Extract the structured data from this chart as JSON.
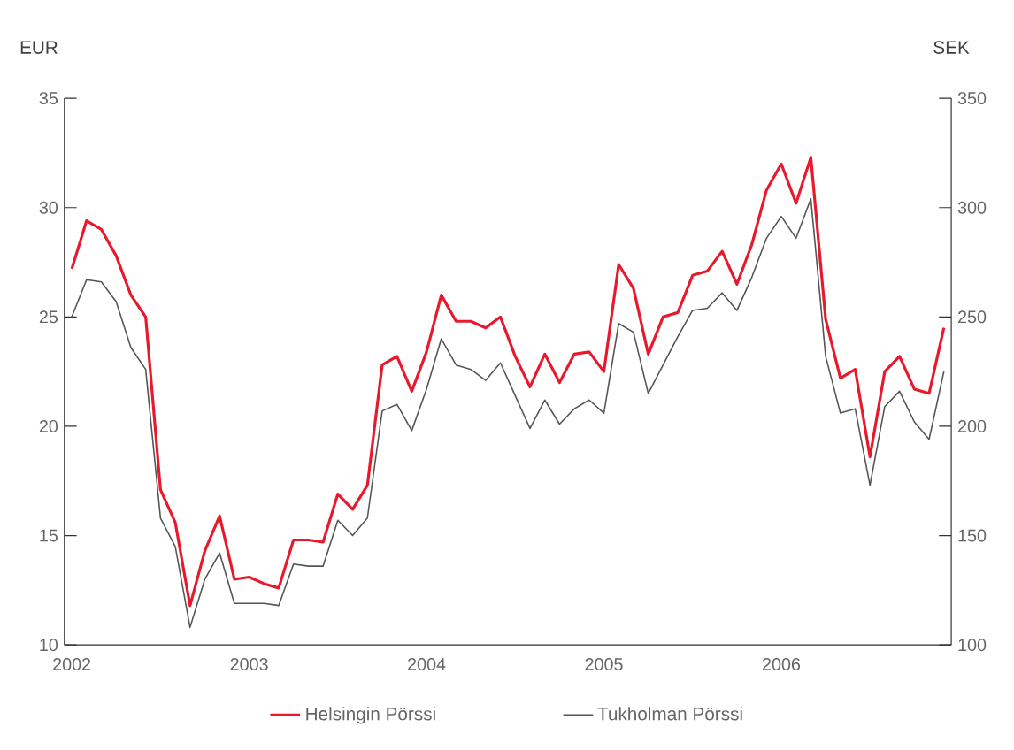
{
  "chart_data": {
    "type": "line",
    "ylabel": "EUR",
    "y2label": "SEK",
    "categories": [
      "2002",
      null,
      null,
      null,
      null,
      null,
      null,
      null,
      null,
      null,
      null,
      null,
      "2003",
      null,
      null,
      null,
      null,
      null,
      null,
      null,
      null,
      null,
      null,
      null,
      "2004",
      null,
      null,
      null,
      null,
      null,
      null,
      null,
      null,
      null,
      null,
      null,
      "2005",
      null,
      null,
      null,
      null,
      null,
      null,
      null,
      null,
      null,
      null,
      null,
      "2006",
      null,
      null,
      null,
      null,
      null,
      null,
      null,
      null,
      null,
      null,
      null
    ],
    "ylim": [
      10,
      35
    ],
    "yticks": [
      10,
      15,
      20,
      25,
      30,
      35
    ],
    "y2lim": [
      100,
      350
    ],
    "y2ticks": [
      100,
      150,
      200,
      250,
      300,
      350
    ],
    "grid": false,
    "legend": "bottom",
    "marker": "none",
    "line_style": "solid",
    "series": [
      {
        "name": "Helsingin Pörssi",
        "color": "#e8192c",
        "values": [
          27.2,
          29.4,
          29.0,
          27.8,
          26.0,
          25.0,
          17.1,
          15.6,
          11.8,
          14.3,
          15.9,
          13.0,
          13.1,
          12.8,
          12.6,
          14.8,
          14.8,
          14.7,
          16.9,
          16.2,
          17.3,
          22.8,
          23.2,
          21.6,
          23.4,
          26.0,
          24.8,
          24.8,
          24.5,
          25.0,
          23.2,
          21.8,
          23.3,
          22.0,
          23.3,
          23.4,
          22.5,
          27.4,
          26.3,
          23.3,
          25.0,
          25.2,
          26.9,
          27.1,
          28.0,
          26.5,
          28.3,
          30.8,
          32.0,
          30.2,
          32.3,
          24.9,
          22.2,
          22.6,
          18.6,
          22.5,
          23.2,
          21.7,
          21.5,
          24.5
        ]
      },
      {
        "name": "Tukholman Pörssi",
        "color": "#555555",
        "axis": "y2",
        "values": [
          250,
          267,
          266,
          257,
          236,
          226,
          158,
          145,
          108,
          130,
          142,
          119,
          119,
          119,
          118,
          137,
          136,
          136,
          157,
          150,
          158,
          207,
          210,
          198,
          217,
          240,
          228,
          226,
          221,
          229,
          214,
          199,
          212,
          201,
          208,
          212,
          206,
          247,
          243,
          215,
          228,
          241,
          253,
          254,
          261,
          253,
          268,
          286,
          296,
          286,
          304,
          232,
          206,
          208,
          173,
          209,
          216,
          202,
          194,
          225
        ]
      }
    ]
  }
}
